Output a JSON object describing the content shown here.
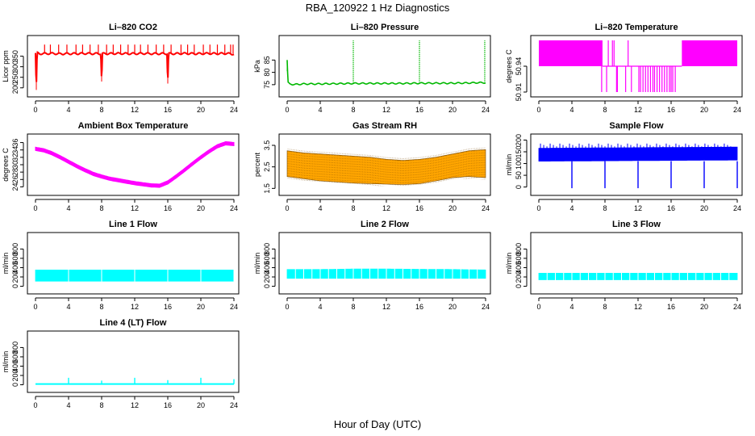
{
  "figure": {
    "title": "RBA_120922  1 Hz Diagnostics",
    "xlabel": "Hour of Day (UTC)"
  },
  "chart_data": [
    {
      "type": "line",
      "title": "Li–820 CO2",
      "ylabel": "Licor ppm",
      "color": "#ff0000",
      "xlim": [
        0,
        24
      ],
      "ylim": [
        180,
        425
      ],
      "xticks": [
        0,
        4,
        8,
        12,
        16,
        20,
        24
      ],
      "yticks": [
        200,
        250,
        300,
        350
      ],
      "series": [
        {
          "x": [
            0,
            0.1,
            0.2,
            0.5,
            1,
            2,
            3,
            4,
            5,
            6,
            7,
            7.9,
            8,
            8.1,
            9,
            10,
            11,
            12,
            13,
            14,
            15,
            15.9,
            16,
            16.1,
            17,
            18,
            19,
            20,
            21,
            22,
            23,
            24
          ],
          "y": [
            365,
            190,
            365,
            362,
            362,
            363,
            361,
            362,
            362,
            363,
            362,
            362,
            230,
            362,
            362,
            363,
            362,
            362,
            363,
            362,
            362,
            362,
            220,
            362,
            362,
            363,
            362,
            362,
            363,
            362,
            363,
            360
          ]
        }
      ],
      "spikes": {
        "x": [
          1.1,
          1.8,
          2.8,
          3.8,
          4.9,
          5.7,
          6.6,
          7.6,
          8.6,
          9.4,
          10.3,
          11.2,
          12.0,
          12.7,
          13.6,
          14.6,
          15.5,
          16.4,
          17.6,
          18.4,
          19.2,
          20.3,
          21.1,
          22.0,
          22.9,
          23.6,
          23.9
        ],
        "y": 405,
        "base": 362
      }
    },
    {
      "type": "line",
      "title": "Li–820 Pressure",
      "ylabel": "kPa",
      "color": "#00b800",
      "xlim": [
        0,
        24
      ],
      "ylim": [
        72,
        93
      ],
      "xticks": [
        0,
        4,
        8,
        12,
        16,
        20,
        24
      ],
      "yticks": [
        75,
        80,
        85
      ],
      "series": [
        {
          "x": [
            0,
            0.1,
            0.3,
            1,
            2,
            4,
            6,
            8,
            10,
            12,
            14,
            16,
            18,
            20,
            22,
            23,
            24
          ],
          "y": [
            85,
            76,
            75.2,
            75.1,
            75.3,
            75.3,
            75.4,
            75.5,
            75.5,
            75.5,
            75.5,
            75.6,
            75.6,
            75.6,
            75.7,
            75.8,
            75.8
          ]
        }
      ],
      "spikes": {
        "x": [
          8,
          16,
          23.9
        ],
        "y": 93,
        "base": 75.5
      }
    },
    {
      "type": "line",
      "title": "Li–820 Temperature",
      "ylabel": "degrees C",
      "color": "#ff00ff",
      "xlim": [
        0,
        24
      ],
      "ylim": [
        50.91,
        50.97
      ],
      "xticks": [
        0,
        4,
        8,
        12,
        16,
        20,
        24
      ],
      "yticks": [
        50.91,
        50.94
      ],
      "levels": {
        "high": 50.97,
        "mid": 50.94,
        "low": 50.91
      },
      "bands": [
        [
          0,
          7.7
        ],
        [
          17.3,
          24
        ]
      ],
      "drops": [
        7.6,
        8.2,
        9.4,
        9.5,
        10.5,
        11.2,
        12.1,
        12.3,
        12.6,
        12.9,
        13.2,
        13.5,
        13.8,
        14.0,
        14.3,
        14.6,
        14.9,
        15.2,
        15.5,
        15.8,
        16.0,
        16.2,
        16.5
      ],
      "rises": [
        8.4,
        8.9,
        9.1,
        10.8,
        17.5,
        23.1,
        23.4
      ]
    },
    {
      "type": "area",
      "title": "Ambient Box Temperature",
      "ylabel": "degrees C",
      "color": "#ff00ff",
      "xlim": [
        0,
        24
      ],
      "ylim": [
        23,
        37
      ],
      "xticks": [
        0,
        4,
        8,
        12,
        16,
        20,
        24
      ],
      "yticks": [
        24,
        26,
        28,
        30,
        32,
        34,
        36
      ],
      "series": [
        {
          "x": [
            0,
            1,
            2,
            3,
            4,
            5,
            6,
            7,
            8,
            9,
            10,
            11,
            12,
            13,
            14,
            15,
            16,
            17,
            18,
            19,
            20,
            21,
            22,
            23,
            24
          ],
          "y": [
            34.3,
            33.9,
            33.1,
            32.0,
            30.8,
            29.6,
            28.5,
            27.5,
            26.8,
            26.2,
            25.8,
            25.4,
            25.0,
            24.7,
            24.4,
            24.3,
            25.2,
            26.8,
            28.5,
            30.3,
            32.0,
            33.6,
            35.0,
            35.8,
            35.6
          ]
        }
      ],
      "band": 0.9
    },
    {
      "type": "area",
      "title": "Gas Stream RH",
      "ylabel": "percent",
      "color": "#ffa500",
      "edge_color": "#7a4a00",
      "xlim": [
        0,
        24
      ],
      "ylim": [
        1.4,
        3.8
      ],
      "xticks": [
        0,
        4,
        8,
        12,
        16,
        20,
        24
      ],
      "yticks": [
        1.5,
        2.5,
        3.5
      ],
      "upper": {
        "x": [
          0,
          2,
          4,
          6,
          8,
          10,
          12,
          14,
          16,
          18,
          20,
          22,
          24
        ],
        "y": [
          3.25,
          3.15,
          3.1,
          3.05,
          3.0,
          2.95,
          2.85,
          2.8,
          2.85,
          2.95,
          3.1,
          3.25,
          3.3
        ]
      },
      "lower": {
        "x": [
          0,
          2,
          4,
          6,
          8,
          10,
          12,
          14,
          16,
          18,
          20,
          22,
          24
        ],
        "y": [
          2.05,
          1.95,
          1.85,
          1.8,
          1.75,
          1.72,
          1.7,
          1.68,
          1.72,
          1.85,
          2.0,
          2.05,
          2.0
        ]
      }
    },
    {
      "type": "area",
      "title": "Sample Flow",
      "ylabel": "ml/min",
      "color": "#0000ff",
      "xlim": [
        0,
        24
      ],
      "ylim": [
        -15,
        205
      ],
      "xticks": [
        0,
        4,
        8,
        12,
        16,
        20,
        24
      ],
      "yticks": [
        0,
        50,
        100,
        150,
        200
      ],
      "upper": {
        "x": [
          0,
          24
        ],
        "y": [
          165,
          170
        ]
      },
      "lower": {
        "x": [
          0,
          24
        ],
        "y": [
          110,
          115
        ]
      },
      "drops_x": [
        4,
        8,
        12,
        16,
        20,
        24
      ],
      "drop_y": -5,
      "peak_y": 185
    },
    {
      "type": "area",
      "title": "Line 1 Flow",
      "ylabel": "ml/min",
      "color": "#00ffff",
      "xlim": [
        0,
        24
      ],
      "ylim": [
        -60,
        1050
      ],
      "xticks": [
        0,
        4,
        8,
        12,
        16,
        20,
        24
      ],
      "yticks": [
        0,
        200,
        400,
        600,
        800
      ],
      "upper": {
        "x": [
          0,
          24
        ],
        "y": [
          350,
          350
        ]
      },
      "lower": {
        "x": [
          0,
          24
        ],
        "y": [
          110,
          110
        ]
      },
      "gaps_x": [
        4,
        8,
        12,
        16,
        20,
        24
      ]
    },
    {
      "type": "area",
      "title": "Line 2 Flow",
      "ylabel": "ml/min",
      "color": "#00ffff",
      "xlim": [
        0,
        24
      ],
      "ylim": [
        -60,
        1050
      ],
      "xticks": [
        0,
        4,
        8,
        12,
        16,
        20,
        24
      ],
      "yticks": [
        0,
        200,
        400,
        600,
        800
      ],
      "upper": {
        "x": [
          0,
          4,
          8,
          12,
          16,
          20,
          24
        ],
        "y": [
          360,
          360,
          370,
          370,
          365,
          360,
          350
        ]
      },
      "lower": {
        "x": [
          0,
          24
        ],
        "y": [
          170,
          170
        ]
      },
      "gaps_x": [
        1,
        2,
        3,
        4,
        5,
        6,
        7,
        8,
        9,
        10,
        11,
        12,
        13,
        14,
        15,
        16,
        17,
        18,
        19,
        20,
        21,
        22,
        23
      ]
    },
    {
      "type": "area",
      "title": "Line 3 Flow",
      "ylabel": "ml/min",
      "color": "#00ffff",
      "xlim": [
        0,
        24
      ],
      "ylim": [
        -60,
        1050
      ],
      "xticks": [
        0,
        4,
        8,
        12,
        16,
        20,
        24
      ],
      "yticks": [
        0,
        200,
        400,
        600,
        800
      ],
      "upper": {
        "x": [
          0,
          24
        ],
        "y": [
          280,
          280
        ]
      },
      "lower": {
        "x": [
          0,
          24
        ],
        "y": [
          140,
          140
        ]
      },
      "gaps_x": [
        1,
        2,
        3,
        4,
        5,
        6,
        7,
        8,
        9,
        10,
        11,
        12,
        13,
        14,
        15,
        16,
        17,
        18,
        19,
        20,
        21,
        22,
        23
      ]
    },
    {
      "type": "line",
      "title": "Line 4 (LT) Flow",
      "ylabel": "ml/min",
      "color": "#00ffff",
      "xlim": [
        0,
        24
      ],
      "ylim": [
        -60,
        1050
      ],
      "xticks": [
        0,
        4,
        8,
        12,
        16,
        20,
        24
      ],
      "yticks": [
        0,
        200,
        400,
        600,
        800
      ],
      "series": [
        {
          "x": [
            0,
            24
          ],
          "y": [
            15,
            15
          ]
        }
      ],
      "spikes": {
        "x": [
          4,
          8,
          12,
          16,
          20,
          24
        ],
        "y": [
          150,
          90,
          150,
          100,
          150,
          120
        ],
        "base": 15
      }
    }
  ]
}
